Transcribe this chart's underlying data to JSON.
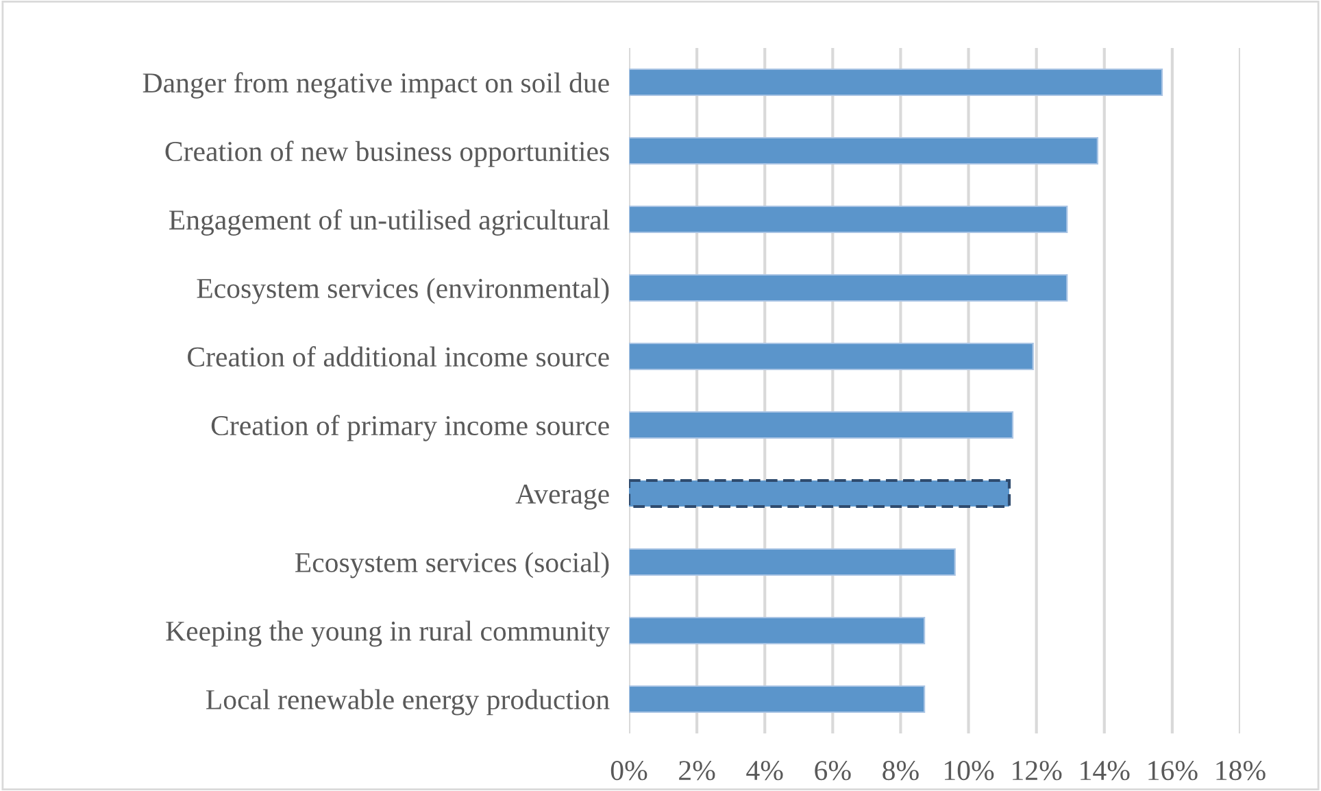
{
  "chart_data": {
    "type": "bar",
    "orientation": "horizontal",
    "categories": [
      "Danger from negative impact on soil due",
      "Creation of new business opportunities",
      "Engagement of un-utilised agricultural",
      "Ecosystem services (environmental)",
      "Creation of additional income source",
      "Creation of primary income source",
      "Average",
      "Ecosystem services (social)",
      "Keeping the young in rural community",
      "Local renewable energy production"
    ],
    "series": [
      {
        "color": "#5b95cb",
        "line_style": "solid",
        "values": [
          15.7,
          13.8,
          12.9,
          12.9,
          11.9,
          11.3,
          null,
          9.6,
          8.7,
          8.7
        ]
      },
      {
        "color": "#5b95cb",
        "line_style": "dashed",
        "values": [
          null,
          null,
          null,
          null,
          null,
          null,
          11.2,
          null,
          null,
          null
        ]
      }
    ],
    "xlim": [
      0,
      18
    ],
    "xticks": [
      {
        "value": 0,
        "label": "0%"
      },
      {
        "value": 2,
        "label": "2%"
      },
      {
        "value": 4,
        "label": "4%"
      },
      {
        "value": 6,
        "label": "6%"
      },
      {
        "value": 8,
        "label": "8%"
      },
      {
        "value": 10,
        "label": "10%"
      },
      {
        "value": 12,
        "label": "12%"
      },
      {
        "value": 14,
        "label": "14%"
      },
      {
        "value": 16,
        "label": "16%"
      },
      {
        "value": 18,
        "label": "18%"
      }
    ],
    "grid": "x",
    "legend": false
  }
}
